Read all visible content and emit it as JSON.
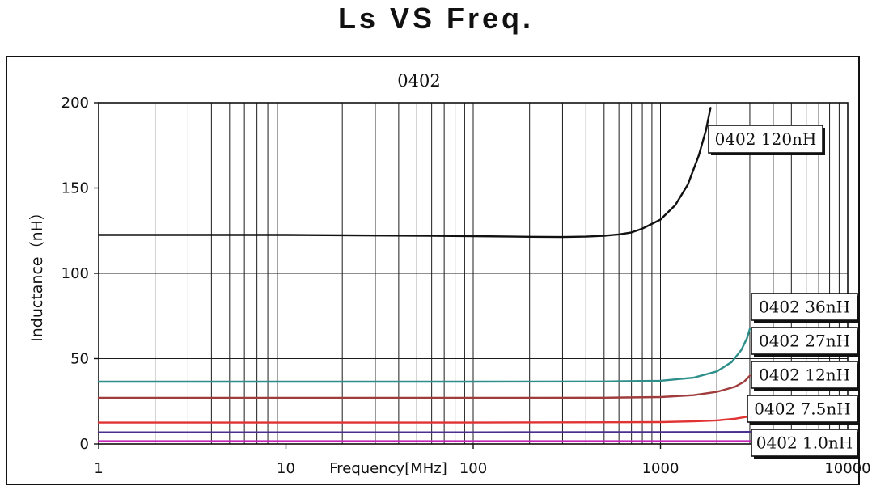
{
  "chart_data": {
    "type": "line",
    "title": "Ls VS Freq.",
    "subtitle": "0402",
    "xlabel": "Frequency[MHz]",
    "ylabel": "Inductance（nH）",
    "x_scale": "log",
    "xlim": [
      1,
      10000
    ],
    "ylim": [
      0,
      200
    ],
    "x_ticks": [
      "1",
      "10",
      "100",
      "1000",
      "10000"
    ],
    "y_ticks": [
      0,
      50,
      100,
      150,
      200
    ],
    "grid": true,
    "legend_position": "right",
    "series": [
      {
        "name": "0402 120nH",
        "color": "#111111",
        "points": [
          [
            1,
            122.5
          ],
          [
            3,
            122.5
          ],
          [
            10,
            122.5
          ],
          [
            30,
            122.2
          ],
          [
            60,
            122.0
          ],
          [
            100,
            121.8
          ],
          [
            200,
            121.4
          ],
          [
            300,
            121.3
          ],
          [
            400,
            121.5
          ],
          [
            500,
            122.0
          ],
          [
            600,
            122.8
          ],
          [
            700,
            124.0
          ],
          [
            800,
            126.2
          ],
          [
            1000,
            131.5
          ],
          [
            1200,
            140.0
          ],
          [
            1400,
            152.0
          ],
          [
            1600,
            169.0
          ],
          [
            1750,
            184.0
          ],
          [
            1850,
            197.0
          ]
        ]
      },
      {
        "name": "0402 36nH",
        "color": "#2e8f8a",
        "points": [
          [
            1,
            36.5
          ],
          [
            10,
            36.5
          ],
          [
            100,
            36.5
          ],
          [
            500,
            36.6
          ],
          [
            1000,
            37.0
          ],
          [
            1500,
            38.8
          ],
          [
            2000,
            42.5
          ],
          [
            2400,
            48.0
          ],
          [
            2700,
            55.0
          ],
          [
            2900,
            62.0
          ],
          [
            3000,
            67.5
          ]
        ]
      },
      {
        "name": "0402 27nH",
        "color": "#a03c3c",
        "points": [
          [
            1,
            27.0
          ],
          [
            10,
            27.0
          ],
          [
            100,
            27.0
          ],
          [
            500,
            27.1
          ],
          [
            1000,
            27.5
          ],
          [
            1500,
            28.6
          ],
          [
            2000,
            30.5
          ],
          [
            2500,
            33.5
          ],
          [
            2800,
            36.5
          ],
          [
            3000,
            40.0
          ]
        ]
      },
      {
        "name": "0402 12nH",
        "color": "#e23333",
        "points": [
          [
            1,
            12.5
          ],
          [
            10,
            12.5
          ],
          [
            100,
            12.5
          ],
          [
            1000,
            12.8
          ],
          [
            1500,
            13.2
          ],
          [
            2000,
            13.8
          ],
          [
            2500,
            14.8
          ],
          [
            3000,
            16.2
          ]
        ]
      },
      {
        "name": "0402 7.5nH",
        "color": "#4b2e8f",
        "points": [
          [
            1,
            6.8
          ],
          [
            10,
            6.8
          ],
          [
            100,
            6.8
          ],
          [
            1000,
            6.9
          ],
          [
            3000,
            7.0
          ],
          [
            10000,
            7.2
          ]
        ]
      },
      {
        "name": "0402 1.0nH",
        "color": "#c327b7",
        "points": [
          [
            1,
            1.6
          ],
          [
            10,
            1.6
          ],
          [
            100,
            1.6
          ],
          [
            1000,
            1.6
          ],
          [
            10000,
            1.7
          ]
        ]
      }
    ],
    "legend": [
      "0402 120nH",
      "0402 36nH",
      "0402 27nH",
      "0402 12nH",
      "0402 7.5nH",
      "0402 1.0nH"
    ]
  }
}
